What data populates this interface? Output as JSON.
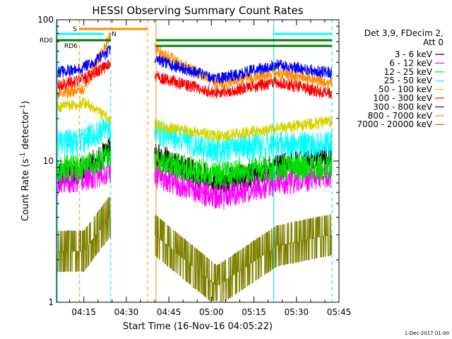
{
  "chart_data": {
    "type": "line",
    "title": "HESSI Observing Summary Count Rates",
    "xlabel": "Start Time (16-Nov-16 04:05:22)",
    "ylabel": "Count Rate (s⁻¹ detector⁻¹)",
    "ylabel_main": "Count Rate (s",
    "ylabel_sup1": "-1",
    "ylabel_mid": " detector",
    "ylabel_sup2": "-1",
    "ylabel_end": ")",
    "yscale": "log",
    "xlim": [
      "04:05:22",
      "05:45"
    ],
    "ylim": [
      1,
      100
    ],
    "x_tick_labels": [
      "04:15",
      "04:30",
      "04:45",
      "05:00",
      "05:15",
      "05:30",
      "05:45"
    ],
    "y_tick_labels": [
      "1",
      "10",
      "100"
    ],
    "footer_date": "1-Dec-2017 01:00",
    "legend_title_line1": "Det 3,9, FDecim 2,",
    "legend_title_line2": "Att 0",
    "series": [
      {
        "name": "3 - 6 keV",
        "color": "#000000",
        "levels": [
          8,
          8.5,
          12,
          11,
          7,
          9,
          11
        ]
      },
      {
        "name": "6 - 12 keV",
        "color": "#ff00ff",
        "levels": [
          7,
          7.5,
          8.5,
          8,
          5.5,
          7,
          8
        ]
      },
      {
        "name": "12 - 25 keV",
        "color": "#00e000",
        "levels": [
          9,
          9,
          11,
          10,
          8,
          9,
          9
        ]
      },
      {
        "name": "25 - 50 keV",
        "color": "#00ffff",
        "levels": [
          13,
          14,
          17,
          16,
          12,
          13,
          13
        ]
      },
      {
        "name": "50 - 100 keV",
        "color": "#d4d400",
        "levels": [
          24,
          26,
          20,
          18,
          15,
          17,
          19
        ]
      },
      {
        "name": "100 - 300 keV",
        "color": "#ff0000",
        "levels": [
          34,
          38,
          48,
          40,
          30,
          36,
          30
        ]
      },
      {
        "name": "300 - 800 keV",
        "color": "#0000ff",
        "levels": [
          42,
          46,
          60,
          52,
          38,
          48,
          42
        ]
      },
      {
        "name": "800 - 7000 keV",
        "color": "#ff8c00",
        "levels": [
          30,
          32,
          75,
          62,
          35,
          42,
          36
        ]
      },
      {
        "name": "7000 - 20000 keV",
        "color": "#808000",
        "levels": [
          2.3,
          2.3,
          4,
          3,
          1.3,
          2.5,
          3
        ]
      }
    ],
    "annotations": {
      "rd0_label": "RD0",
      "rd6_label": "RD6",
      "s_label": "S",
      "n_label": "N"
    }
  }
}
